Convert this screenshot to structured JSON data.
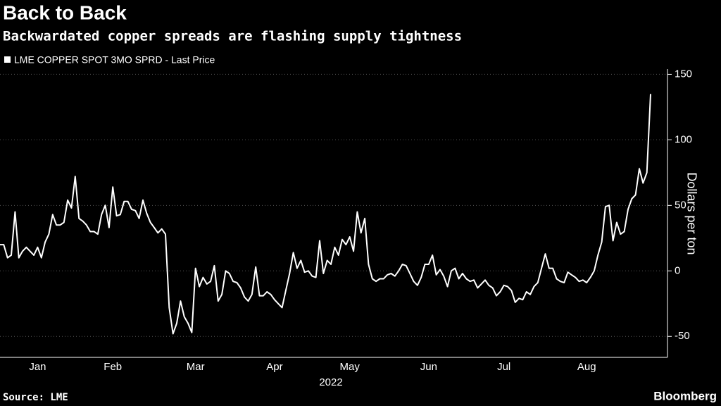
{
  "chart_data": {
    "type": "line",
    "title": "Back to Back",
    "subtitle": "Backwardated copper spreads are flashing supply tightness",
    "y_label": "Dollars per ton",
    "x_label": "2022",
    "source": "Source: LME",
    "brand": "Bloomberg",
    "categories": [
      null,
      null,
      null,
      null,
      null,
      null,
      null,
      null,
      null,
      null,
      "Jan",
      null,
      null,
      null,
      null,
      null,
      null,
      null,
      null,
      null,
      null,
      null,
      null,
      null,
      null,
      null,
      null,
      null,
      null,
      null,
      "Feb",
      null,
      null,
      null,
      null,
      null,
      null,
      null,
      null,
      null,
      null,
      null,
      null,
      null,
      null,
      null,
      null,
      null,
      null,
      null,
      null,
      null,
      "Mar",
      null,
      null,
      null,
      null,
      null,
      null,
      null,
      null,
      null,
      null,
      null,
      null,
      null,
      null,
      null,
      null,
      null,
      null,
      null,
      null,
      "Apr",
      null,
      null,
      null,
      null,
      null,
      null,
      null,
      null,
      null,
      null,
      null,
      null,
      null,
      null,
      null,
      null,
      null,
      null,
      null,
      "May",
      null,
      null,
      null,
      null,
      null,
      null,
      null,
      null,
      null,
      null,
      null,
      null,
      null,
      null,
      null,
      null,
      null,
      null,
      null,
      null,
      "Jun",
      null,
      null,
      null,
      null,
      null,
      null,
      null,
      null,
      null,
      null,
      null,
      null,
      null,
      null,
      null,
      null,
      null,
      null,
      null,
      "Jul",
      null,
      null,
      null,
      null,
      null,
      null,
      null,
      null,
      null,
      null,
      null,
      null,
      null,
      null,
      null,
      null,
      null,
      null,
      null,
      null,
      null,
      "Aug",
      null,
      null,
      null,
      null,
      null,
      null,
      null,
      null,
      null,
      null,
      null,
      null,
      null,
      null,
      null,
      null,
      null
    ],
    "series": [
      {
        "name": "LME COPPER SPOT 3MO SPRD - Last Price",
        "color": "#ffffff",
        "values": [
          20,
          20,
          10,
          12,
          45,
          10,
          15,
          18,
          15,
          12,
          18,
          10,
          22,
          28,
          43,
          35,
          35,
          37,
          54,
          48,
          72,
          40,
          38,
          35,
          30,
          30,
          28,
          43,
          50,
          33,
          64,
          42,
          43,
          53,
          53,
          47,
          46,
          40,
          54,
          44,
          37,
          33,
          29,
          32,
          28,
          -28,
          -48,
          -40,
          -23,
          -35,
          -40,
          -47,
          2,
          -12,
          -5,
          -10,
          -8,
          4,
          -23,
          -18,
          0,
          -2,
          -8,
          -9,
          -13,
          -20,
          -23,
          -18,
          3,
          -19,
          -19,
          -16,
          -18,
          -22,
          -25,
          -28,
          -15,
          -2,
          14,
          2,
          8,
          -1,
          0,
          -4,
          -5,
          23,
          -2,
          8,
          5,
          18,
          12,
          24,
          20,
          26,
          15,
          45,
          29,
          40,
          5,
          -6,
          -8,
          -6,
          -6,
          -3,
          -2,
          -4,
          0,
          5,
          4,
          -2,
          -8,
          -11,
          -5,
          5,
          5,
          12,
          -3,
          1,
          -4,
          -12,
          0,
          2,
          -6,
          -2,
          -6,
          -8,
          -7,
          -13,
          -10,
          -7,
          -11,
          -13,
          -19,
          -16,
          -11,
          -12,
          -15,
          -24,
          -21,
          -22,
          -16,
          -18,
          -12,
          -9,
          2,
          13,
          2,
          2,
          -6,
          -8,
          -9,
          -1,
          -3,
          -5,
          -8,
          -7,
          -9,
          -5,
          0,
          12,
          22,
          49,
          50,
          23,
          37,
          28,
          30,
          47,
          55,
          58,
          78,
          67,
          75,
          135
        ]
      }
    ],
    "ylim": [
      -66,
      154
    ],
    "yticks": [
      -50,
      0,
      50,
      100,
      150
    ],
    "grid": true
  }
}
